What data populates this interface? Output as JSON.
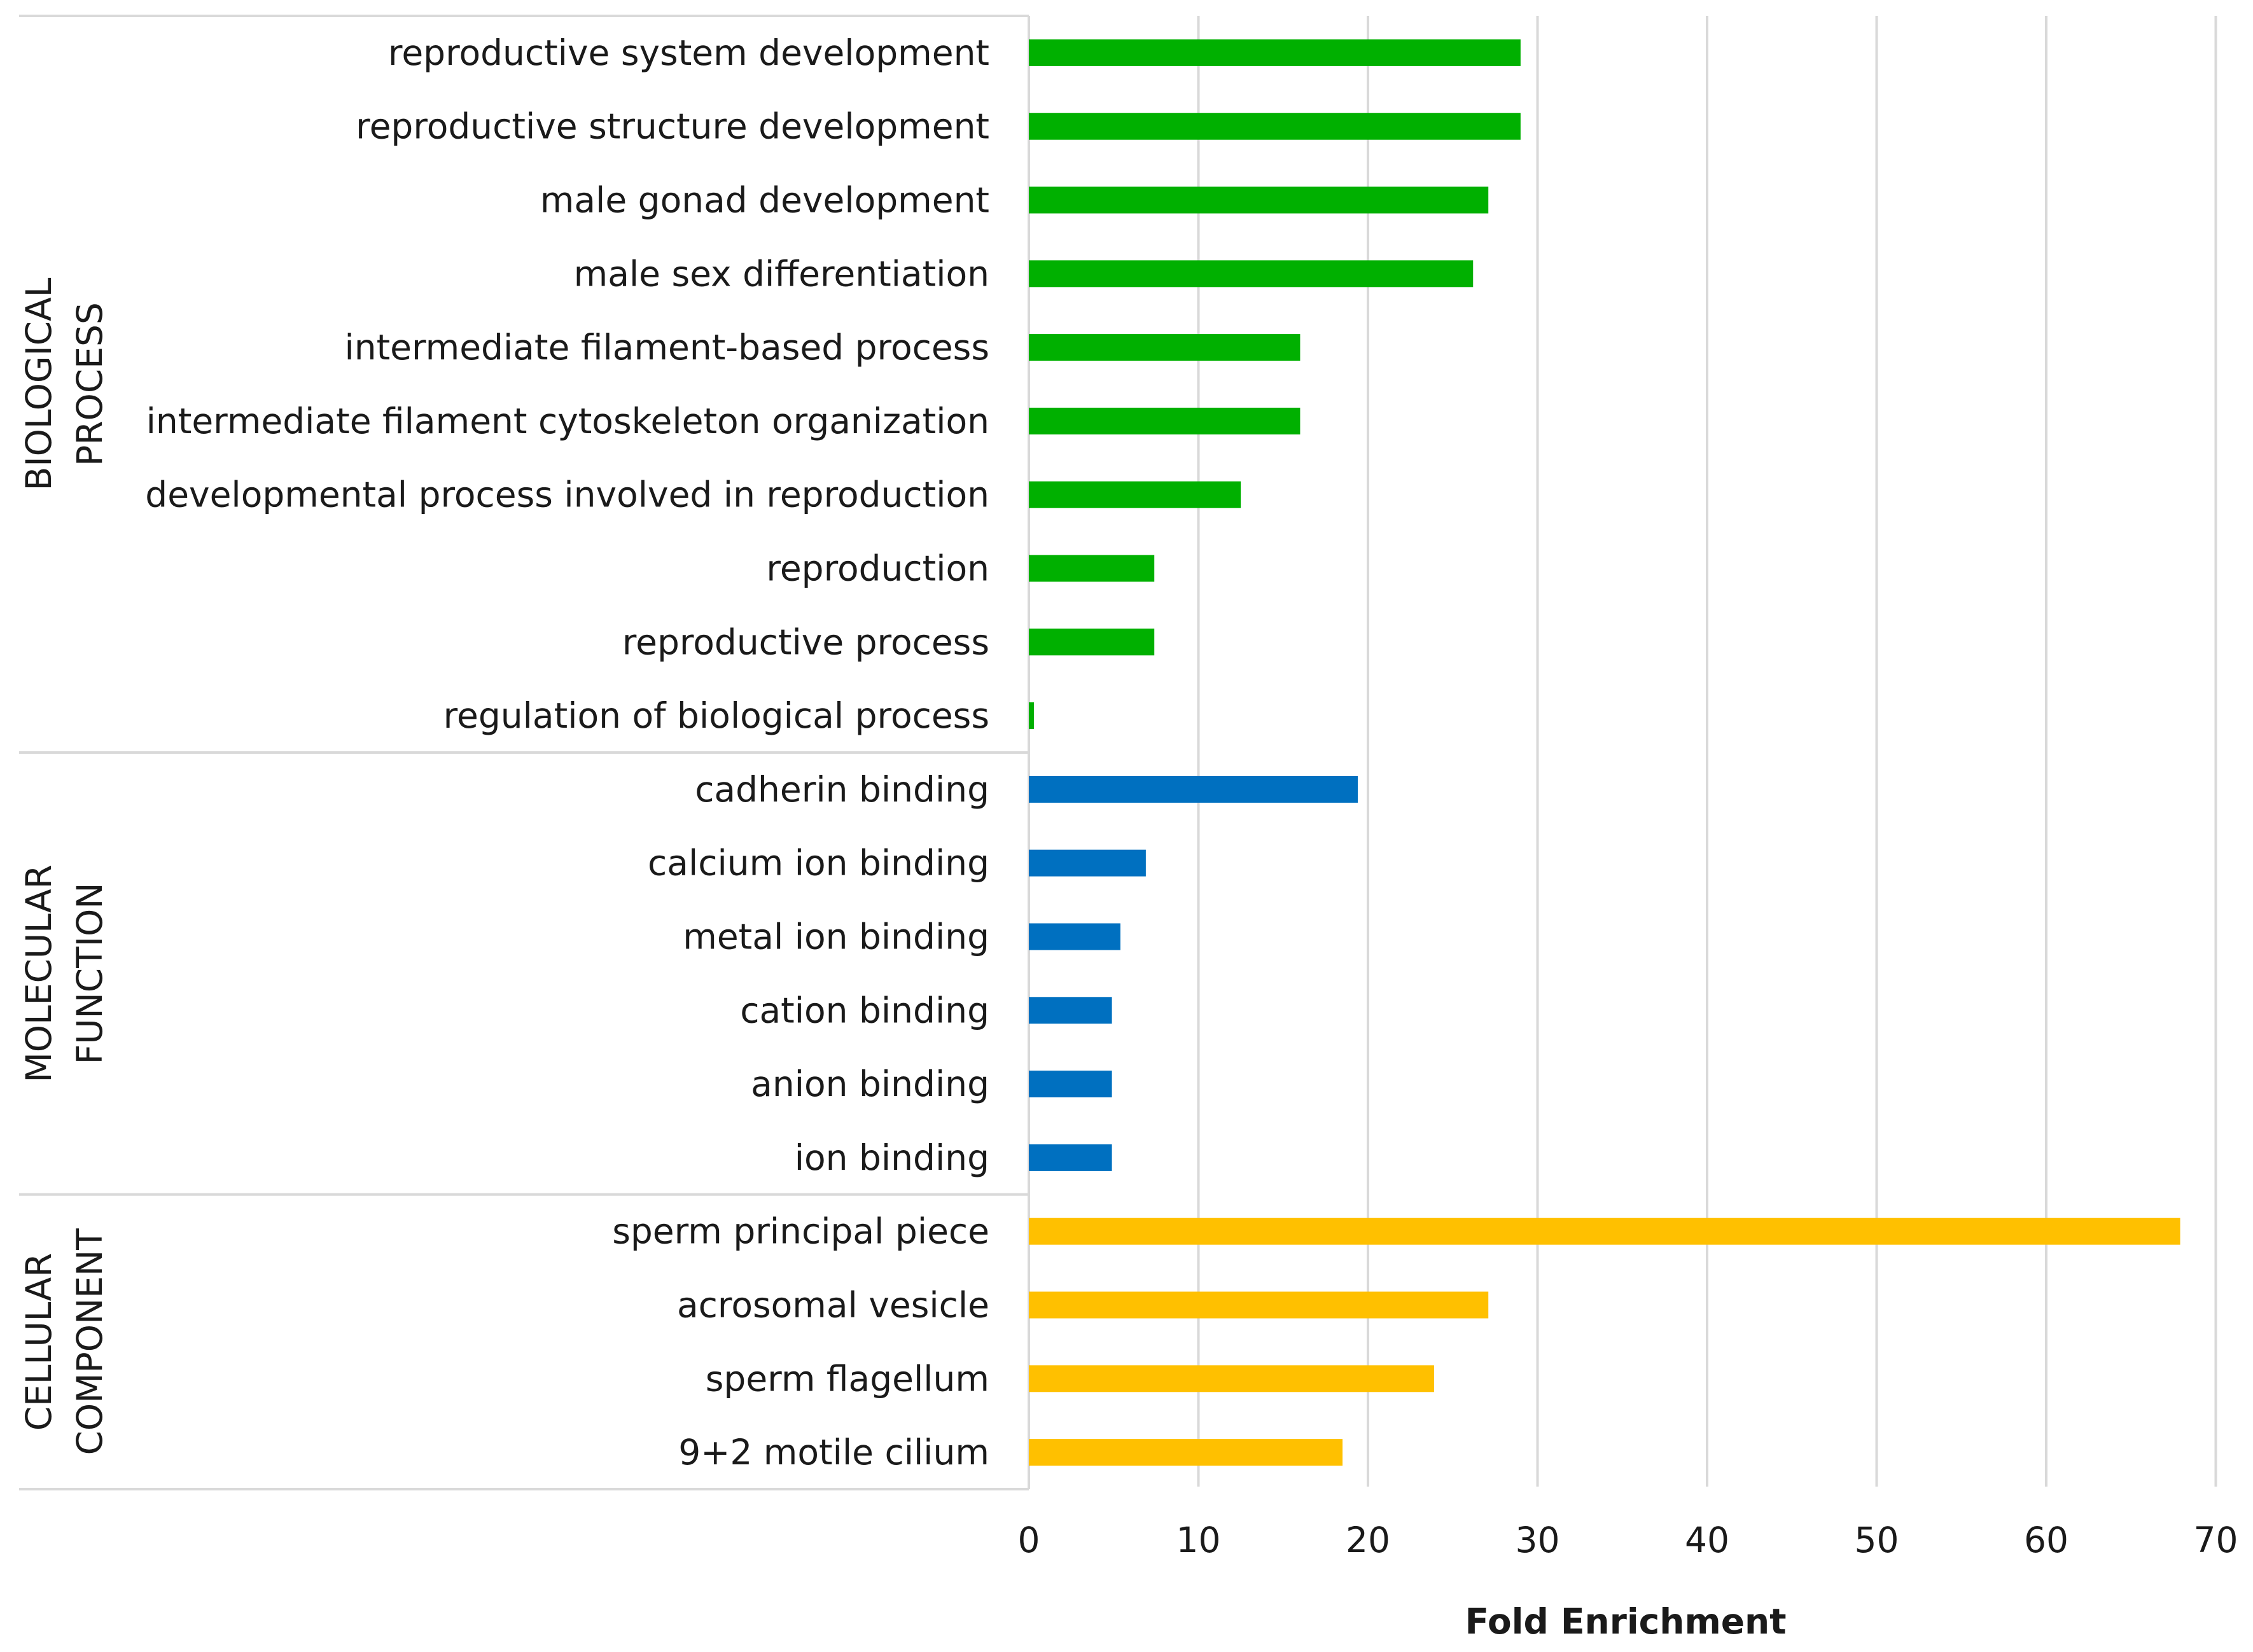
{
  "chart_data": {
    "type": "bar",
    "orientation": "horizontal",
    "title": "",
    "xlabel": "Fold Enrichment",
    "ylabel": "",
    "xlim": [
      0,
      70
    ],
    "xticks": [
      "0",
      "10",
      "20",
      "30",
      "40",
      "50",
      "60",
      "70"
    ],
    "grid": true,
    "groups": [
      {
        "name": "BIOLOGICAL PROCESS",
        "label_lines": [
          "BIOLOGICAL",
          "PROCESS"
        ],
        "color": "#00b000",
        "categories": [
          "reproductive system development",
          "reproductive structure development",
          "male gonad development",
          "male sex differentiation",
          "intermediate filament-based process",
          "intermediate filament cytoskeleton organization",
          "developmental process involved in reproduction",
          "reproduction",
          "reproductive process",
          "regulation of biological process"
        ],
        "values": [
          29,
          29,
          27.1,
          26.2,
          16,
          16,
          12.5,
          7.4,
          7.4,
          0.3
        ]
      },
      {
        "name": "MOLECULAR FUNCTION",
        "label_lines": [
          "MOLECULAR",
          "FUNCTION"
        ],
        "color": "#0070c0",
        "categories": [
          "cadherin binding",
          "calcium ion binding",
          "metal ion binding",
          "cation binding",
          "anion binding",
          "ion binding"
        ],
        "values": [
          19.4,
          6.9,
          5.4,
          4.9,
          4.9,
          4.9
        ]
      },
      {
        "name": "CELLULAR COMPONENT",
        "label_lines": [
          "CELLULAR",
          "COMPONENT"
        ],
        "color": "#ffc000",
        "categories": [
          "sperm principal piece",
          "acrosomal vesicle",
          "sperm flagellum",
          "9+2 motile cilium"
        ],
        "values": [
          67.9,
          27.1,
          23.9,
          18.5
        ]
      }
    ]
  }
}
